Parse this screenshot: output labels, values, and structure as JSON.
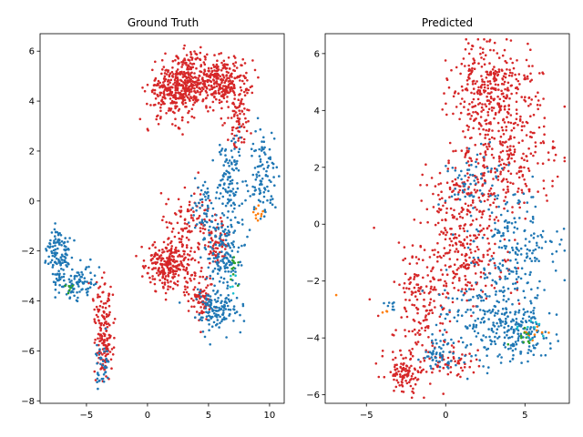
{
  "chart_data": [
    {
      "type": "scatter",
      "title": "Ground Truth",
      "xlabel": "",
      "ylabel": "",
      "xlim": [
        -8.8,
        11.2
      ],
      "ylim": [
        -8.1,
        6.7
      ],
      "xticks": [
        -5,
        0,
        5,
        10
      ],
      "yticks": [
        -8,
        -6,
        -4,
        -2,
        0,
        2,
        4,
        6
      ],
      "grid": false,
      "colors": {
        "red": "#d62728",
        "blue": "#1f77b4",
        "orange": "#ff7f0e",
        "green": "#2ca02c",
        "cyan": "#17becf"
      },
      "clusters": [
        {
          "color": "red",
          "n": 260,
          "cx": 2.0,
          "cy": 4.4,
          "sx": 1.0,
          "sy": 0.55
        },
        {
          "color": "red",
          "n": 160,
          "cx": 3.5,
          "cy": 4.9,
          "sx": 0.7,
          "sy": 0.6
        },
        {
          "color": "red",
          "n": 300,
          "cx": 6.0,
          "cy": 4.8,
          "sx": 1.2,
          "sy": 0.5
        },
        {
          "color": "red",
          "n": 70,
          "cx": 7.6,
          "cy": 3.3,
          "sx": 0.45,
          "sy": 0.6
        },
        {
          "color": "red",
          "n": 120,
          "cx": 3.6,
          "cy": -1.0,
          "sx": 1.0,
          "sy": 0.8
        },
        {
          "color": "red",
          "n": 260,
          "cx": 1.8,
          "cy": -2.6,
          "sx": 1.0,
          "sy": 0.45
        },
        {
          "color": "red",
          "n": 80,
          "cx": 4.2,
          "cy": -3.8,
          "sx": 0.6,
          "sy": 0.45
        },
        {
          "color": "red",
          "n": 50,
          "cx": 5.8,
          "cy": -1.7,
          "sx": 0.5,
          "sy": 0.4
        },
        {
          "color": "red",
          "n": 110,
          "cx": -3.6,
          "cy": -4.8,
          "sx": 0.45,
          "sy": 0.9
        },
        {
          "color": "red",
          "n": 60,
          "cx": -3.4,
          "cy": -6.0,
          "sx": 0.3,
          "sy": 0.7
        },
        {
          "color": "blue",
          "n": 110,
          "cx": 6.8,
          "cy": 0.8,
          "sx": 0.55,
          "sy": 0.9
        },
        {
          "color": "blue",
          "n": 100,
          "cx": 9.4,
          "cy": 1.0,
          "sx": 0.55,
          "sy": 0.8
        },
        {
          "color": "blue",
          "n": 140,
          "cx": 6.2,
          "cy": -2.0,
          "sx": 0.8,
          "sy": 0.7
        },
        {
          "color": "blue",
          "n": 140,
          "cx": 5.6,
          "cy": -4.3,
          "sx": 0.8,
          "sy": 0.45
        },
        {
          "color": "blue",
          "n": 60,
          "cx": 4.8,
          "cy": -0.3,
          "sx": 0.6,
          "sy": 0.6
        },
        {
          "color": "blue",
          "n": 130,
          "cx": -7.3,
          "cy": -2.2,
          "sx": 0.5,
          "sy": 0.55
        },
        {
          "color": "blue",
          "n": 80,
          "cx": -5.6,
          "cy": -3.3,
          "sx": 0.7,
          "sy": 0.4
        },
        {
          "color": "blue",
          "n": 40,
          "cx": -3.7,
          "cy": -6.6,
          "sx": 0.3,
          "sy": 0.5
        },
        {
          "color": "orange",
          "n": 10,
          "cx": 9.1,
          "cy": -0.5,
          "sx": 0.2,
          "sy": 0.15
        },
        {
          "color": "green",
          "n": 12,
          "cx": 7.1,
          "cy": -2.6,
          "sx": 0.2,
          "sy": 0.3
        },
        {
          "color": "green",
          "n": 6,
          "cx": -6.3,
          "cy": -3.6,
          "sx": 0.2,
          "sy": 0.2
        },
        {
          "color": "cyan",
          "n": 5,
          "cx": 6.9,
          "cy": -3.2,
          "sx": 0.2,
          "sy": 0.2
        }
      ]
    },
    {
      "type": "scatter",
      "title": "Predicted",
      "xlabel": "",
      "ylabel": "",
      "xlim": [
        -7.6,
        7.8
      ],
      "ylim": [
        -6.3,
        6.7
      ],
      "xticks": [
        -5,
        0,
        5
      ],
      "yticks": [
        -6,
        -4,
        -2,
        0,
        2,
        4,
        6
      ],
      "grid": false,
      "colors": {
        "red": "#d62728",
        "blue": "#1f77b4",
        "orange": "#ff7f0e",
        "green": "#2ca02c",
        "cyan": "#17becf"
      },
      "clusters": [
        {
          "color": "red",
          "n": 320,
          "cx": 3.0,
          "cy": 4.8,
          "sx": 1.3,
          "sy": 0.8
        },
        {
          "color": "red",
          "n": 260,
          "cx": 3.8,
          "cy": 2.4,
          "sx": 1.6,
          "sy": 0.9
        },
        {
          "color": "red",
          "n": 180,
          "cx": 1.2,
          "cy": 0.6,
          "sx": 1.3,
          "sy": 0.8
        },
        {
          "color": "red",
          "n": 200,
          "cx": 0.8,
          "cy": -1.5,
          "sx": 1.5,
          "sy": 0.8
        },
        {
          "color": "red",
          "n": 130,
          "cx": -1.6,
          "cy": -3.0,
          "sx": 0.8,
          "sy": 0.9
        },
        {
          "color": "red",
          "n": 110,
          "cx": -2.6,
          "cy": -5.2,
          "sx": 0.6,
          "sy": 0.35
        },
        {
          "color": "red",
          "n": 60,
          "cx": 0.5,
          "cy": -4.8,
          "sx": 0.9,
          "sy": 0.4
        },
        {
          "color": "blue",
          "n": 170,
          "cx": 4.5,
          "cy": -0.8,
          "sx": 1.3,
          "sy": 1.0
        },
        {
          "color": "blue",
          "n": 200,
          "cx": 2.6,
          "cy": -3.2,
          "sx": 1.6,
          "sy": 0.9
        },
        {
          "color": "blue",
          "n": 120,
          "cx": 5.0,
          "cy": -3.8,
          "sx": 0.9,
          "sy": 0.5
        },
        {
          "color": "blue",
          "n": 60,
          "cx": -0.3,
          "cy": -4.6,
          "sx": 0.6,
          "sy": 0.35
        },
        {
          "color": "blue",
          "n": 70,
          "cx": 1.8,
          "cy": 1.6,
          "sx": 1.0,
          "sy": 0.6
        },
        {
          "color": "blue",
          "n": 8,
          "cx": -3.4,
          "cy": -3.0,
          "sx": 0.3,
          "sy": 0.2
        },
        {
          "color": "orange",
          "n": 1,
          "cx": -6.9,
          "cy": -2.5,
          "sx": 0.01,
          "sy": 0.01
        },
        {
          "color": "orange",
          "n": 3,
          "cx": -3.9,
          "cy": -3.1,
          "sx": 0.15,
          "sy": 0.1
        },
        {
          "color": "orange",
          "n": 10,
          "cx": 5.4,
          "cy": -3.8,
          "sx": 0.4,
          "sy": 0.2
        },
        {
          "color": "green",
          "n": 10,
          "cx": 4.8,
          "cy": -4.0,
          "sx": 0.3,
          "sy": 0.2
        },
        {
          "color": "cyan",
          "n": 10,
          "cx": 5.3,
          "cy": -3.7,
          "sx": 0.4,
          "sy": 0.2
        }
      ]
    }
  ]
}
